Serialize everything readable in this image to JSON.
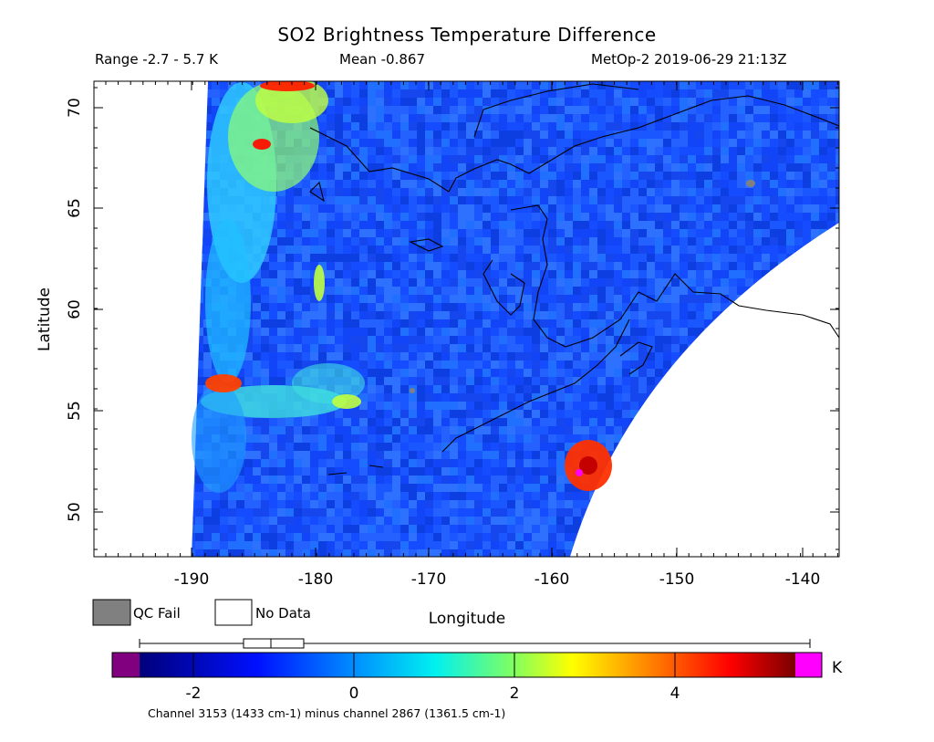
{
  "title": "SO2 Brightness Temperature Difference",
  "range_text": "Range -2.7 - 5.7 K",
  "mean_text": "Mean -0.867",
  "satellite_time": "MetOp-2 2019-06-29 21:13Z",
  "map": {
    "x_label": "Longitude",
    "y_label": "Latitude",
    "x_ticks": [
      "-190",
      "-180",
      "-170",
      "-160",
      "-150",
      "-140"
    ],
    "y_ticks": [
      "70",
      "65",
      "60",
      "55",
      "50"
    ],
    "lon_range": [
      -197.5,
      -137.5
    ],
    "lat_range": [
      47.5,
      71.5
    ],
    "colors": {
      "low": "#0000c8",
      "mid": "#00c8ff",
      "high": "#ff3000",
      "qc_fail": "#808080"
    }
  },
  "legend": {
    "qc_fail": "QC Fail",
    "no_data": "No Data"
  },
  "colorbar": {
    "ticks": [
      "-2",
      "0",
      "2",
      "4"
    ],
    "unit": "K",
    "value_range": [
      -2.7,
      5.7
    ]
  },
  "footnote": "Channel 3153 (1433 cm-1) minus channel 2867 (1361.5 cm-1)"
}
